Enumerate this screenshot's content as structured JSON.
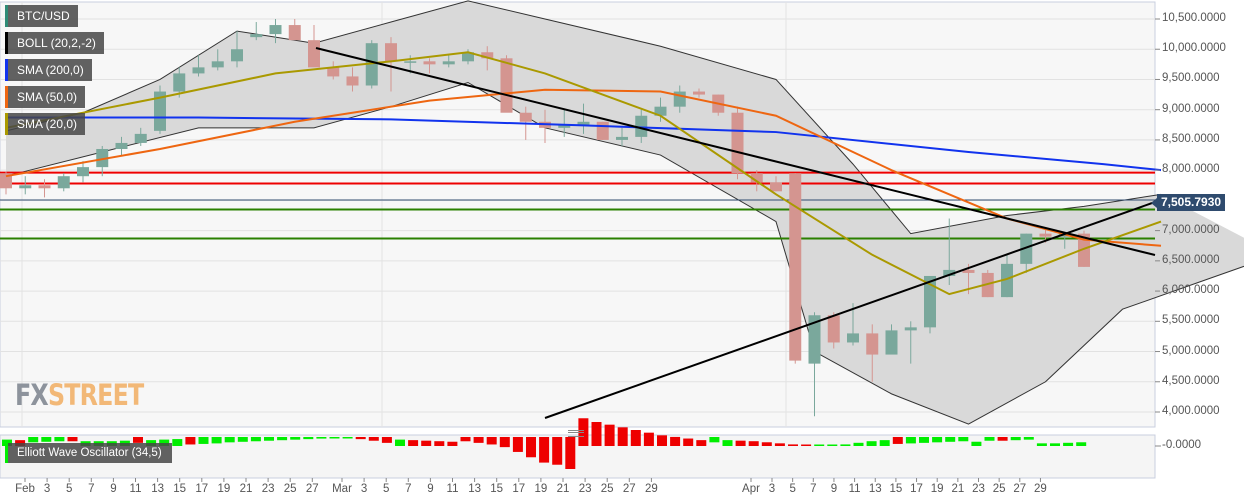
{
  "legend": {
    "items": [
      {
        "label": "BTC/USD",
        "color": "#2e8b76"
      },
      {
        "label": "BOLL (20,2,-2)",
        "color": "#000000"
      },
      {
        "label": "SMA (200,0)",
        "color": "#1133ee"
      },
      {
        "label": "SMA (50,0)",
        "color": "#ee6611"
      },
      {
        "label": "SMA (20,0)",
        "color": "#aa9900"
      }
    ],
    "oscillator": {
      "label": "Elliott Wave Oscillator (34,5)",
      "color": "#00ee00"
    }
  },
  "logo": {
    "fx": "FX",
    "street": "STREET"
  },
  "price_tag": "7,505.7930",
  "chart_data": {
    "type": "candlestick",
    "title": "BTC/USD",
    "ylim": [
      3800,
      10800
    ],
    "y_ticks": [
      "10,500.0000",
      "10,000.0000",
      "9,500.0000",
      "9,000.0000",
      "8,500.0000",
      "8,000.0000",
      "7,000.0000",
      "6,500.0000",
      "6,000.0000",
      "5,500.0000",
      "5,000.0000",
      "4,500.0000",
      "4,000.0000"
    ],
    "y_tick_values": [
      10500,
      10000,
      9500,
      9000,
      8500,
      8000,
      7000,
      6500,
      6000,
      5500,
      5000,
      4500,
      4000
    ],
    "x_ticks": [
      "Feb",
      "3",
      "5",
      "7",
      "9",
      "11",
      "13",
      "15",
      "17",
      "19",
      "21",
      "23",
      "25",
      "27",
      "Mar",
      "3",
      "5",
      "7",
      "9",
      "11",
      "13",
      "15",
      "17",
      "19",
      "21",
      "23",
      "25",
      "27",
      "29",
      "Apr",
      "3",
      "5",
      "7",
      "9",
      "11",
      "13",
      "15",
      "17",
      "19",
      "21",
      "23",
      "25",
      "27",
      "29"
    ],
    "current_price": 7505.793,
    "horizontal_levels": [
      {
        "value": 7960,
        "color": "#ee0000"
      },
      {
        "value": 7780,
        "color": "#ee0000"
      },
      {
        "value": 7505.79,
        "color": "#2f4b6e"
      },
      {
        "value": 7350,
        "color": "#2a8000"
      },
      {
        "value": 6870,
        "color": "#2a8000"
      }
    ],
    "trendlines": [
      {
        "from": [
          24,
          10050
        ],
        "to": [
          60,
          6700
        ]
      },
      {
        "from": [
          13,
          3930
        ],
        "to": [
          60,
          7520
        ]
      }
    ],
    "candles": [
      [
        7950,
        7980,
        7600,
        7700
      ],
      [
        7700,
        7900,
        7600,
        7750
      ],
      [
        7750,
        7850,
        7550,
        7700
      ],
      [
        7700,
        7950,
        7650,
        7900
      ],
      [
        7900,
        8150,
        7800,
        8050
      ],
      [
        8050,
        8400,
        7900,
        8350
      ],
      [
        8350,
        8550,
        8250,
        8450
      ],
      [
        8450,
        8700,
        8400,
        8600
      ],
      [
        8650,
        9400,
        8600,
        9300
      ],
      [
        9300,
        9700,
        9200,
        9600
      ],
      [
        9600,
        9900,
        9550,
        9700
      ],
      [
        9700,
        10000,
        9650,
        9800
      ],
      [
        9800,
        10300,
        9700,
        10000
      ],
      [
        10200,
        10450,
        10150,
        10250
      ],
      [
        10250,
        10500,
        10100,
        10400
      ],
      [
        10400,
        10500,
        10200,
        10150
      ],
      [
        10150,
        10400,
        10050,
        9700
      ],
      [
        9700,
        9800,
        9500,
        9550
      ],
      [
        9550,
        9700,
        9300,
        9400
      ],
      [
        9400,
        10150,
        9350,
        10100
      ],
      [
        10100,
        10200,
        9300,
        9800
      ],
      [
        9800,
        9900,
        9600,
        9800
      ],
      [
        9800,
        9850,
        9600,
        9750
      ],
      [
        9750,
        9900,
        9700,
        9800
      ],
      [
        9800,
        10000,
        9750,
        9950
      ],
      [
        9950,
        10050,
        9650,
        9850
      ],
      [
        9850,
        9900,
        9300,
        8950
      ],
      [
        8950,
        9050,
        8500,
        8800
      ],
      [
        8800,
        9000,
        8450,
        8700
      ],
      [
        8700,
        9000,
        8550,
        8750
      ],
      [
        8750,
        9100,
        8600,
        8800
      ],
      [
        8800,
        8800,
        8500,
        8500
      ],
      [
        8500,
        8700,
        8400,
        8550
      ],
      [
        8550,
        9000,
        8450,
        8900
      ],
      [
        8900,
        9200,
        8800,
        9050
      ],
      [
        9050,
        9400,
        8950,
        9300
      ],
      [
        9300,
        9350,
        9200,
        9250
      ],
      [
        9250,
        9250,
        8900,
        8950
      ],
      [
        8950,
        9050,
        7850,
        7950
      ],
      [
        7950,
        8000,
        7650,
        7800
      ],
      [
        7800,
        7900,
        7650,
        7650
      ],
      [
        7950,
        7950,
        4800,
        4850
      ],
      [
        4800,
        5650,
        3930,
        5600
      ],
      [
        5600,
        5650,
        5050,
        5150
      ],
      [
        5150,
        5800,
        5100,
        5300
      ],
      [
        5300,
        5450,
        4500,
        4950
      ],
      [
        4950,
        5450,
        4950,
        5350
      ],
      [
        5350,
        5500,
        4800,
        5400
      ],
      [
        5400,
        6000,
        5300,
        6250
      ],
      [
        6250,
        7200,
        6100,
        6350
      ],
      [
        6350,
        6450,
        5950,
        6300
      ],
      [
        6300,
        6350,
        5900,
        5900
      ],
      [
        5900,
        6600,
        5900,
        6450
      ],
      [
        6450,
        6950,
        6300,
        6950
      ],
      [
        6950,
        7050,
        6800,
        6900
      ],
      [
        6900,
        6950,
        6700,
        6950
      ],
      [
        6950,
        7000,
        6400,
        6400
      ]
    ],
    "sma200": [
      [
        0,
        8870
      ],
      [
        10,
        8870
      ],
      [
        20,
        8840
      ],
      [
        30,
        8740
      ],
      [
        40,
        8630
      ],
      [
        50,
        8300
      ],
      [
        57,
        8100
      ],
      [
        60,
        8000
      ]
    ],
    "sma50": [
      [
        0,
        7900
      ],
      [
        8,
        8350
      ],
      [
        15,
        8800
      ],
      [
        22,
        9150
      ],
      [
        28,
        9330
      ],
      [
        34,
        9300
      ],
      [
        40,
        8900
      ],
      [
        46,
        8000
      ],
      [
        52,
        7200
      ],
      [
        56,
        6850
      ],
      [
        60,
        6750
      ]
    ],
    "sma20": [
      [
        0,
        8700
      ],
      [
        8,
        9200
      ],
      [
        14,
        9600
      ],
      [
        20,
        9800
      ],
      [
        24,
        9950
      ],
      [
        28,
        9600
      ],
      [
        34,
        8900
      ],
      [
        40,
        7600
      ],
      [
        45,
        6600
      ],
      [
        49,
        5950
      ],
      [
        52,
        6200
      ],
      [
        56,
        6700
      ],
      [
        60,
        7150
      ]
    ],
    "boll_upper": [
      [
        0,
        8650
      ],
      [
        4,
        8950
      ],
      [
        8,
        9500
      ],
      [
        12,
        10300
      ],
      [
        16,
        10100
      ],
      [
        20,
        10450
      ],
      [
        24,
        10800
      ],
      [
        28,
        10500
      ],
      [
        34,
        10050
      ],
      [
        40,
        9500
      ],
      [
        44,
        8100
      ],
      [
        47,
        6950
      ],
      [
        52,
        7250
      ],
      [
        56,
        7400
      ],
      [
        60,
        7600
      ]
    ],
    "boll_lower": [
      [
        0,
        7900
      ],
      [
        5,
        8300
      ],
      [
        10,
        8700
      ],
      [
        16,
        8700
      ],
      [
        20,
        9050
      ],
      [
        24,
        9450
      ],
      [
        28,
        8700
      ],
      [
        34,
        8250
      ],
      [
        40,
        7150
      ],
      [
        42,
        5000
      ],
      [
        46,
        4300
      ],
      [
        50,
        3800
      ],
      [
        54,
        4500
      ],
      [
        58,
        5700
      ],
      [
        62,
        6150
      ],
      [
        66,
        6600
      ]
    ],
    "oscillator": {
      "values": [
        120,
        110,
        -100,
        -90,
        -80,
        -80,
        90,
        90,
        90,
        100,
        -110,
        110,
        120,
        130,
        -140,
        -130,
        -120,
        -100,
        -90,
        -80,
        -70,
        -60,
        -50,
        -40,
        -30,
        -20,
        -10,
        -40,
        -70,
        -110,
        120,
        110,
        100,
        90,
        80,
        -80,
        -110,
        -140,
        -190,
        -280,
        -380,
        -480,
        -520,
        -600,
        520,
        450,
        400,
        350,
        300,
        250,
        200,
        170,
        140,
        110,
        -100,
        110,
        100,
        90,
        70,
        50,
        30,
        10,
        10,
        20,
        30,
        60,
        90,
        110,
        -130,
        -120,
        -110,
        -100,
        -90,
        -80,
        80,
        -70,
        -70,
        -60,
        -50,
        50,
        50,
        60,
        70
      ],
      "zero_label": "-0.0000"
    }
  }
}
